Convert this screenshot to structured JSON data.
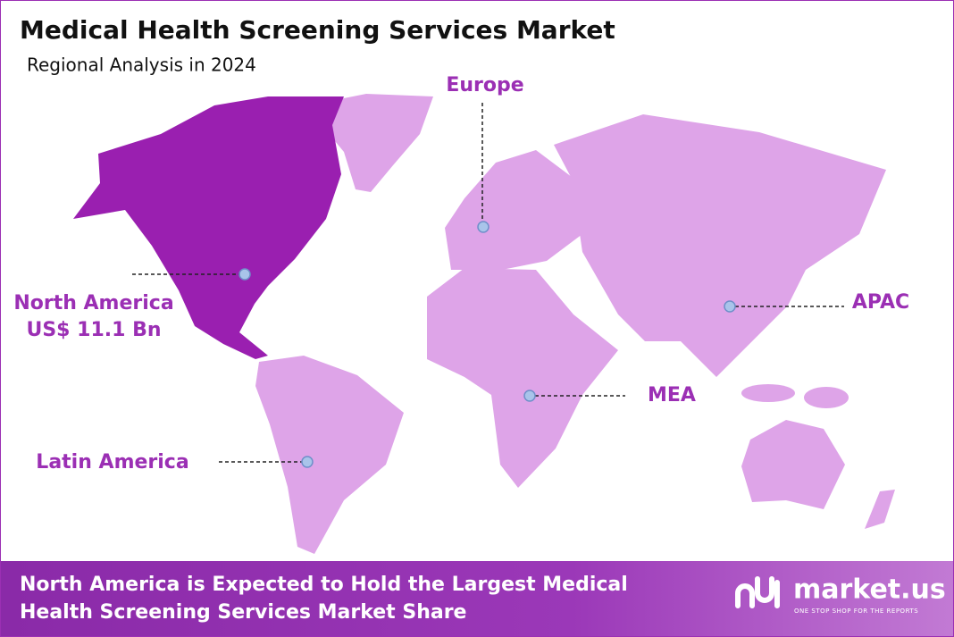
{
  "header": {
    "title": "Medical Health Screening Services Market",
    "subtitle": "Regional Analysis in 2024"
  },
  "regions": [
    {
      "name": "Europe"
    },
    {
      "name": "North America",
      "value": "US$ 11.1 Bn"
    },
    {
      "name": "APAC"
    },
    {
      "name": "MEA"
    },
    {
      "name": "Latin America"
    }
  ],
  "footer": {
    "lines": [
      "North America is Expected to Hold the Largest Medical",
      "Health Screening Services Market Share"
    ]
  },
  "logo": {
    "name": "market.us",
    "tagline": "ONE STOP SHOP FOR THE REPORTS"
  }
}
